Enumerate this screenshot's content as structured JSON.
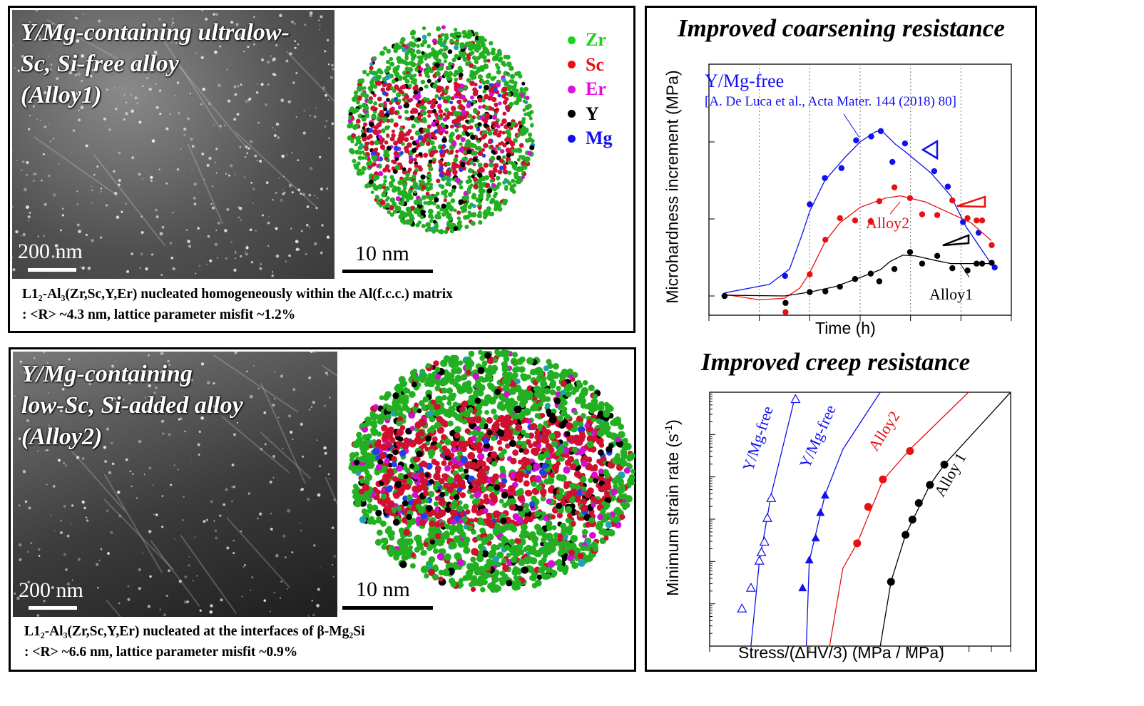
{
  "panel_alloy1": {
    "title": "Y/Mg-containing ultralow-\nSc, Si-free alloy\n(Alloy1)",
    "micrograph_scale": "200 nm",
    "atom_map_scale": "10 nm",
    "caption_line1": "L1₂-Al₃(Zr,Sc,Y,Er) nucleated homogeneously within the Al(f.c.c.) matrix",
    "caption_line2": ": <R> ~4.3 nm, lattice parameter misfit ~1.2%",
    "legend": [
      {
        "label": "Zr",
        "color": "#1fd11f"
      },
      {
        "label": "Sc",
        "color": "#e81010"
      },
      {
        "label": "Er",
        "color": "#e010e0"
      },
      {
        "label": "Y",
        "color": "#000000"
      },
      {
        "label": "Mg",
        "color": "#1010ee"
      }
    ]
  },
  "panel_alloy2": {
    "title": "Y/Mg-containing\nlow-Sc, Si-added alloy\n(Alloy2)",
    "micrograph_scale": "200 nm",
    "atom_map_scale": "10 nm",
    "caption_line1": "L1₂-Al₃(Zr,Sc,Y,Er) nucleated at the interfaces of β-Mg₂Si",
    "caption_line2": ": <R> ~6.6 nm, lattice parameter misfit ~0.9%"
  },
  "chart_data": [
    {
      "type": "scatter",
      "title": "Improved coarsening resistance",
      "xlabel": "Time (h)",
      "ylabel": "Microhardness increment (MPa)",
      "x_tick_labels": "none printed",
      "y_tick_labels": "none printed",
      "grid": "dotted vertical lines",
      "annotations": [
        "Y/Mg-free",
        "[A. De Luca et al.,  Acta Mater. 144 (2018) 80]",
        "Alloy2",
        "Alloy1"
      ],
      "series": [
        {
          "name": "Y/Mg-free",
          "color": "#1010ee",
          "points": [
            [
              0.31,
              0
            ],
            [
              1.51,
              0.26
            ],
            [
              2.0,
              1.19
            ],
            [
              2.3,
              1.53
            ],
            [
              2.63,
              1.66
            ],
            [
              2.92,
              2.02
            ],
            [
              3.22,
              2.07
            ],
            [
              3.41,
              2.14
            ],
            [
              3.64,
              1.74
            ],
            [
              3.89,
              1.98
            ],
            [
              4.47,
              1.62
            ],
            [
              4.74,
              1.42
            ],
            [
              5.04,
              0.96
            ],
            [
              5.35,
              0.82
            ],
            [
              5.67,
              0.37
            ]
          ],
          "fit": [
            [
              0.31,
              0.04
            ],
            [
              1.2,
              0.15
            ],
            [
              1.6,
              0.35
            ],
            [
              1.85,
              0.8
            ],
            [
              2.0,
              1.1
            ],
            [
              2.3,
              1.5
            ],
            [
              2.7,
              1.8
            ],
            [
              3.0,
              2.0
            ],
            [
              3.3,
              2.13
            ],
            [
              3.42,
              2.15
            ],
            [
              3.7,
              1.97
            ],
            [
              3.9,
              1.87
            ],
            [
              4.4,
              1.6
            ],
            [
              4.8,
              1.3
            ],
            [
              5.1,
              0.9
            ],
            [
              5.67,
              0.35
            ]
          ]
        },
        {
          "name": "Alloy2",
          "color": "#e81010",
          "points": [
            [
              1.52,
              -0.21
            ],
            [
              2.0,
              0.28
            ],
            [
              2.31,
              0.73
            ],
            [
              2.6,
              1.01
            ],
            [
              2.9,
              0.98
            ],
            [
              3.21,
              0.97
            ],
            [
              3.38,
              1.23
            ],
            [
              3.68,
              1.41
            ],
            [
              3.99,
              1.27
            ],
            [
              4.23,
              1.06
            ],
            [
              4.53,
              1.05
            ],
            [
              4.83,
              1.24
            ],
            [
              5.13,
              1.01
            ],
            [
              5.31,
              0.98
            ],
            [
              5.42,
              0.98
            ],
            [
              5.61,
              0.66
            ]
          ],
          "fit": [
            [
              0.31,
              0.02
            ],
            [
              1.0,
              -0.05
            ],
            [
              1.5,
              -0.03
            ],
            [
              1.8,
              0.1
            ],
            [
              2.0,
              0.3
            ],
            [
              2.3,
              0.7
            ],
            [
              2.6,
              0.95
            ],
            [
              3.0,
              1.15
            ],
            [
              3.5,
              1.27
            ],
            [
              3.8,
              1.3
            ],
            [
              4.3,
              1.22
            ],
            [
              4.8,
              1.07
            ],
            [
              5.2,
              0.95
            ],
            [
              5.6,
              0.72
            ]
          ]
        },
        {
          "name": "Alloy1",
          "color": "#000000",
          "points": [
            [
              0.31,
              0
            ],
            [
              1.52,
              -0.09
            ],
            [
              2.0,
              0.05
            ],
            [
              2.31,
              0.06
            ],
            [
              2.6,
              0.12
            ],
            [
              2.9,
              0.22
            ],
            [
              3.21,
              0.29
            ],
            [
              3.38,
              0.19
            ],
            [
              3.68,
              0.35
            ],
            [
              3.99,
              0.57
            ],
            [
              4.23,
              0.42
            ],
            [
              4.53,
              0.52
            ],
            [
              4.83,
              0.36
            ],
            [
              5.13,
              0.33
            ],
            [
              5.31,
              0.42
            ],
            [
              5.42,
              0.42
            ],
            [
              5.61,
              0.43
            ]
          ],
          "fit": [
            [
              0.31,
              0.01
            ],
            [
              1.5,
              0
            ],
            [
              2.0,
              0.05
            ],
            [
              2.5,
              0.12
            ],
            [
              3.0,
              0.24
            ],
            [
              3.4,
              0.34
            ],
            [
              3.6,
              0.45
            ],
            [
              3.85,
              0.53
            ],
            [
              4.1,
              0.52
            ],
            [
              4.5,
              0.46
            ],
            [
              4.8,
              0.42
            ],
            [
              5.2,
              0.42
            ],
            [
              5.6,
              0.42
            ]
          ]
        }
      ]
    },
    {
      "type": "scatter",
      "title": "Improved creep resistance",
      "xlabel": "Stress/(ΔHV/3) (MPa / MPa)",
      "ylabel": "Minimum strain rate (s",
      "ylabel_sup": "-1",
      "ylabel_end": ")",
      "x_scale": "log",
      "y_scale": "log",
      "x_tick_labels": "none printed",
      "y_tick_labels": "none printed",
      "annotations": [
        "Y/Mg-free",
        "Y/Mg-free",
        "Alloy2",
        "Alloy 1"
      ],
      "series": [
        {
          "name": "Y/Mg-free",
          "color": "#1010ee",
          "marker": "open-triangle",
          "points": [
            [
              1.25,
              0.89
            ],
            [
              1.33,
              1.38
            ],
            [
              1.41,
              2.02
            ],
            [
              1.43,
              2.22
            ],
            [
              1.46,
              2.47
            ],
            [
              1.49,
              3.03
            ],
            [
              1.53,
              3.5
            ],
            [
              1.81,
              5.84
            ]
          ],
          "fit": [
            [
              1.33,
              0
            ],
            [
              1.41,
              2.0
            ],
            [
              1.53,
              3.58
            ],
            [
              1.81,
              5.94
            ]
          ]
        },
        {
          "name": "Y/Mg-free",
          "color": "#1010ee",
          "marker": "filled-triangle",
          "points": [
            [
              1.9,
              1.38
            ],
            [
              1.99,
              2.04
            ],
            [
              2.08,
              2.56
            ],
            [
              2.15,
              3.16
            ],
            [
              2.22,
              3.57
            ]
          ],
          "fit": [
            [
              1.95,
              0
            ],
            [
              1.99,
              2.01
            ],
            [
              2.22,
              3.58
            ],
            [
              2.51,
              4.65
            ],
            [
              3.25,
              6
            ]
          ]
        },
        {
          "name": "Alloy2",
          "color": "#e81010",
          "marker": "filled-circle",
          "points": [
            [
              2.77,
              2.43
            ],
            [
              2.99,
              3.29
            ],
            [
              3.31,
              3.94
            ],
            [
              3.99,
              4.61
            ]
          ],
          "fit": [
            [
              2.29,
              0
            ],
            [
              2.51,
              1.84
            ],
            [
              2.77,
              2.43
            ],
            [
              3.31,
              3.92
            ],
            [
              3.99,
              4.65
            ],
            [
              5.98,
              6
            ]
          ]
        },
        {
          "name": "Alloy 1",
          "color": "#000000",
          "marker": "filled-circle",
          "points": [
            [
              3.5,
              1.52
            ],
            [
              3.87,
              2.63
            ],
            [
              4.06,
              2.99
            ],
            [
              4.24,
              3.38
            ],
            [
              4.58,
              3.81
            ],
            [
              5.06,
              4.29
            ]
          ],
          "fit": [
            [
              3.25,
              0
            ],
            [
              3.5,
              1.52
            ],
            [
              3.87,
              2.63
            ],
            [
              4.58,
              3.81
            ],
            [
              5.06,
              4.29
            ],
            [
              8,
              6
            ]
          ]
        }
      ]
    }
  ]
}
